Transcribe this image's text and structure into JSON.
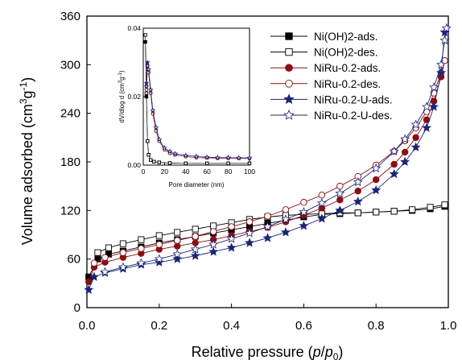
{
  "chart_data": [
    {
      "type": "line",
      "role": "main",
      "xlabel": "Relative pressure (p/p0)",
      "ylabel": "Volume adsorbed (cm3g-1)",
      "xlim": [
        0,
        1.0
      ],
      "ylim": [
        0,
        360
      ],
      "xticks": [
        "0.0",
        "0.2",
        "0.4",
        "0.6",
        "0.8",
        "1.0"
      ],
      "yticks": [
        "0",
        "60",
        "120",
        "180",
        "240",
        "300",
        "360"
      ],
      "xtick_values": [
        0,
        0.2,
        0.4,
        0.6,
        0.8,
        1.0
      ],
      "ytick_values": [
        0,
        60,
        120,
        180,
        240,
        300,
        360
      ],
      "grid": false,
      "legend_position": "top-right",
      "series": [
        {
          "name": "Ni(OH)2-ads.",
          "color": "#000000",
          "marker": "square",
          "fill": true,
          "x": [
            0.005,
            0.03,
            0.06,
            0.1,
            0.15,
            0.2,
            0.25,
            0.3,
            0.35,
            0.4,
            0.45,
            0.5,
            0.55,
            0.6,
            0.65,
            0.7,
            0.75,
            0.8,
            0.85,
            0.9,
            0.95,
            0.99
          ],
          "y": [
            38,
            60,
            66,
            70,
            75,
            80,
            84,
            88,
            92,
            96,
            100,
            104,
            108,
            112,
            115,
            116,
            117,
            118,
            119,
            120,
            122,
            125
          ]
        },
        {
          "name": "Ni(OH)2-des.",
          "color": "#000000",
          "marker": "square",
          "fill": false,
          "x": [
            0.99,
            0.95,
            0.9,
            0.85,
            0.8,
            0.75,
            0.7,
            0.65,
            0.6,
            0.55,
            0.5,
            0.45,
            0.4,
            0.35,
            0.3,
            0.25,
            0.2,
            0.15,
            0.1,
            0.06,
            0.03
          ],
          "y": [
            127,
            124,
            121,
            119,
            118,
            117,
            117,
            116,
            115,
            114,
            112,
            109,
            105,
            101,
            97,
            93,
            89,
            84,
            79,
            74,
            68
          ]
        },
        {
          "name": "NiRu-0.2-ads.",
          "color": "#8b0e14",
          "marker": "circle",
          "fill": true,
          "x": [
            0.005,
            0.02,
            0.05,
            0.1,
            0.15,
            0.2,
            0.25,
            0.3,
            0.35,
            0.4,
            0.45,
            0.5,
            0.55,
            0.6,
            0.65,
            0.7,
            0.75,
            0.8,
            0.85,
            0.88,
            0.91,
            0.94,
            0.96,
            0.98,
            0.99
          ],
          "y": [
            32,
            50,
            56,
            62,
            67,
            72,
            76,
            80,
            84,
            89,
            94,
            99,
            106,
            114,
            123,
            133,
            144,
            158,
            177,
            192,
            210,
            232,
            255,
            285,
            305
          ]
        },
        {
          "name": "NiRu-0.2-des.",
          "color": "#8b0e14",
          "marker": "circle",
          "fill": false,
          "x": [
            0.99,
            0.98,
            0.96,
            0.94,
            0.91,
            0.88,
            0.85,
            0.8,
            0.75,
            0.7,
            0.65,
            0.6,
            0.55,
            0.5,
            0.45,
            0.4,
            0.35,
            0.3,
            0.25,
            0.2,
            0.15,
            0.1,
            0.05,
            0.02
          ],
          "y": [
            305,
            290,
            265,
            242,
            222,
            206,
            193,
            176,
            162,
            150,
            139,
            130,
            121,
            113,
            106,
            100,
            94,
            88,
            83,
            78,
            73,
            68,
            62,
            55
          ]
        },
        {
          "name": "NiRu-0.2-U-ads.",
          "color": "#1c2577",
          "marker": "star",
          "fill": true,
          "x": [
            0.005,
            0.02,
            0.05,
            0.1,
            0.15,
            0.2,
            0.25,
            0.3,
            0.35,
            0.4,
            0.45,
            0.5,
            0.55,
            0.6,
            0.65,
            0.7,
            0.75,
            0.8,
            0.85,
            0.88,
            0.91,
            0.94,
            0.96,
            0.98,
            0.99
          ],
          "y": [
            22,
            38,
            43,
            48,
            53,
            56,
            60,
            64,
            69,
            74,
            80,
            86,
            93,
            101,
            110,
            120,
            131,
            145,
            165,
            180,
            198,
            222,
            248,
            290,
            340
          ]
        },
        {
          "name": "NiRu-0.2-U-des.",
          "color": "#1c2577",
          "marker": "star",
          "fill": false,
          "x": [
            0.995,
            0.99,
            0.98,
            0.96,
            0.94,
            0.91,
            0.88,
            0.85,
            0.8,
            0.75,
            0.7,
            0.65,
            0.6,
            0.55,
            0.5,
            0.45,
            0.4,
            0.35,
            0.3,
            0.25,
            0.2,
            0.15,
            0.1,
            0.05
          ],
          "y": [
            345,
            330,
            300,
            272,
            248,
            226,
            208,
            193,
            172,
            155,
            141,
            129,
            118,
            109,
            100,
            92,
            85,
            78,
            72,
            66,
            60,
            55,
            50,
            44
          ]
        }
      ]
    },
    {
      "type": "line",
      "role": "inset",
      "xlabel": "Pore diameter (nm)",
      "ylabel": "dV/dlog d (cm3g-1)",
      "xlim": [
        0,
        100
      ],
      "ylim": [
        0,
        0.04
      ],
      "xticks": [
        "0",
        "20",
        "40",
        "60",
        "80",
        "100"
      ],
      "yticks": [
        "0.00",
        "0.02",
        "0.04"
      ],
      "xtick_values": [
        0,
        20,
        40,
        60,
        80,
        100
      ],
      "ytick_values": [
        0,
        0.02,
        0.04
      ],
      "grid": false,
      "series": [
        {
          "name": "Ni(OH)2-ads.",
          "color": "#000000",
          "marker": "square",
          "fill": true,
          "x": [
            2,
            3,
            4,
            5,
            7,
            10,
            15,
            25,
            40,
            60,
            80,
            100
          ],
          "y": [
            0.036,
            0.02,
            0.007,
            0.003,
            0.0015,
            0.001,
            0.0008,
            0.0006,
            0.0005,
            0.0005,
            0.0005,
            0.0005
          ]
        },
        {
          "name": "Ni(OH)2-des.",
          "color": "#000000",
          "marker": "square",
          "fill": false,
          "x": [
            2,
            3,
            4,
            5,
            7,
            10,
            15,
            25,
            40,
            60,
            80,
            100
          ],
          "y": [
            0.038,
            0.021,
            0.007,
            0.003,
            0.0015,
            0.001,
            0.0008,
            0.0006,
            0.0005,
            0.0005,
            0.0005,
            0.0005
          ]
        },
        {
          "name": "NiRu-0.2-ads.",
          "color": "#8b0e14",
          "marker": "circle",
          "fill": true,
          "x": [
            3,
            4,
            5,
            7,
            9,
            12,
            15,
            20,
            25,
            30,
            40,
            50,
            60,
            70,
            80,
            90,
            100
          ],
          "y": [
            0.023,
            0.029,
            0.027,
            0.021,
            0.015,
            0.01,
            0.007,
            0.0045,
            0.0035,
            0.003,
            0.0025,
            0.0022,
            0.0021,
            0.002,
            0.002,
            0.002,
            0.002
          ]
        },
        {
          "name": "NiRu-0.2-des.",
          "color": "#8b0e14",
          "marker": "circle",
          "fill": false,
          "x": [
            3,
            4,
            5,
            7,
            9,
            12,
            15,
            20,
            25,
            30,
            40,
            50,
            60,
            70,
            80,
            90,
            100
          ],
          "y": [
            0.022,
            0.028,
            0.027,
            0.021,
            0.015,
            0.01,
            0.007,
            0.0045,
            0.0035,
            0.003,
            0.0025,
            0.0022,
            0.0021,
            0.002,
            0.002,
            0.002,
            0.002
          ]
        },
        {
          "name": "NiRu-0.2-U-ads.",
          "color": "#1c2577",
          "marker": "star",
          "fill": true,
          "x": [
            3,
            4,
            5,
            7,
            9,
            12,
            15,
            20,
            25,
            30,
            40,
            50,
            60,
            70,
            80,
            90,
            100
          ],
          "y": [
            0.024,
            0.03,
            0.028,
            0.022,
            0.016,
            0.011,
            0.0075,
            0.005,
            0.004,
            0.0033,
            0.0028,
            0.0025,
            0.0023,
            0.0022,
            0.0022,
            0.0021,
            0.0021
          ]
        },
        {
          "name": "NiRu-0.2-U-des.",
          "color": "#1c2577",
          "marker": "star",
          "fill": false,
          "x": [
            3,
            4,
            5,
            7,
            9,
            12,
            15,
            20,
            25,
            30,
            40,
            50,
            60,
            70,
            80,
            90,
            100
          ],
          "y": [
            0.023,
            0.029,
            0.028,
            0.022,
            0.016,
            0.011,
            0.0075,
            0.005,
            0.004,
            0.0033,
            0.0028,
            0.0025,
            0.0023,
            0.0022,
            0.0022,
            0.0021,
            0.0021
          ]
        }
      ]
    }
  ]
}
